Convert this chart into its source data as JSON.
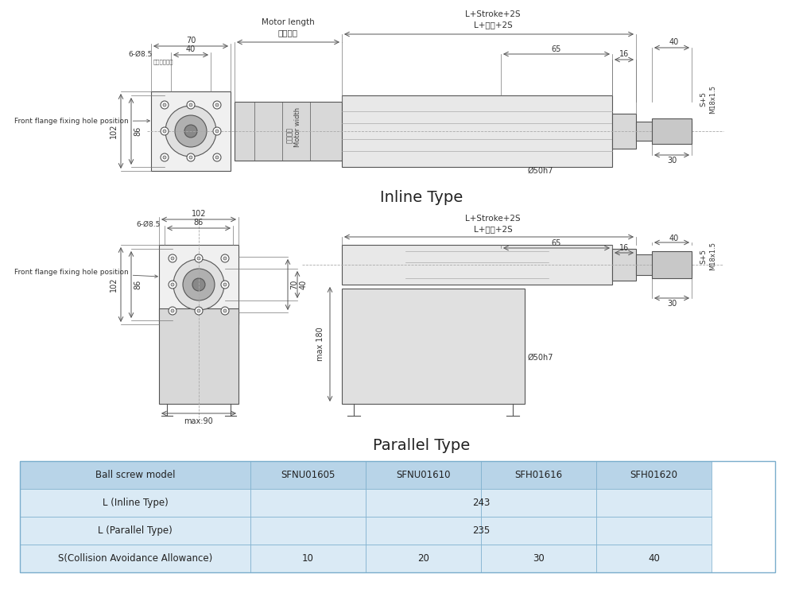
{
  "bg_color": "#ffffff",
  "line_color": "#555555",
  "table_header_bg": "#b8d4e8",
  "table_row_bg": "#daeaf5",
  "table_border": "#7aadcc",
  "inline_title": "Inline Type",
  "parallel_title": "Parallel Type",
  "table_headers": [
    "Ball screw model",
    "SFNU01605",
    "SFNU01610",
    "SFH01616",
    "SFH01620"
  ],
  "table_rows": [
    [
      "L (Inline Type)",
      "",
      "243",
      "",
      ""
    ],
    [
      "L (Parallel Type)",
      "",
      "235",
      "",
      ""
    ],
    [
      "S(Collision Avoidance Allowance)",
      "10",
      "20",
      "30",
      "40"
    ]
  ]
}
